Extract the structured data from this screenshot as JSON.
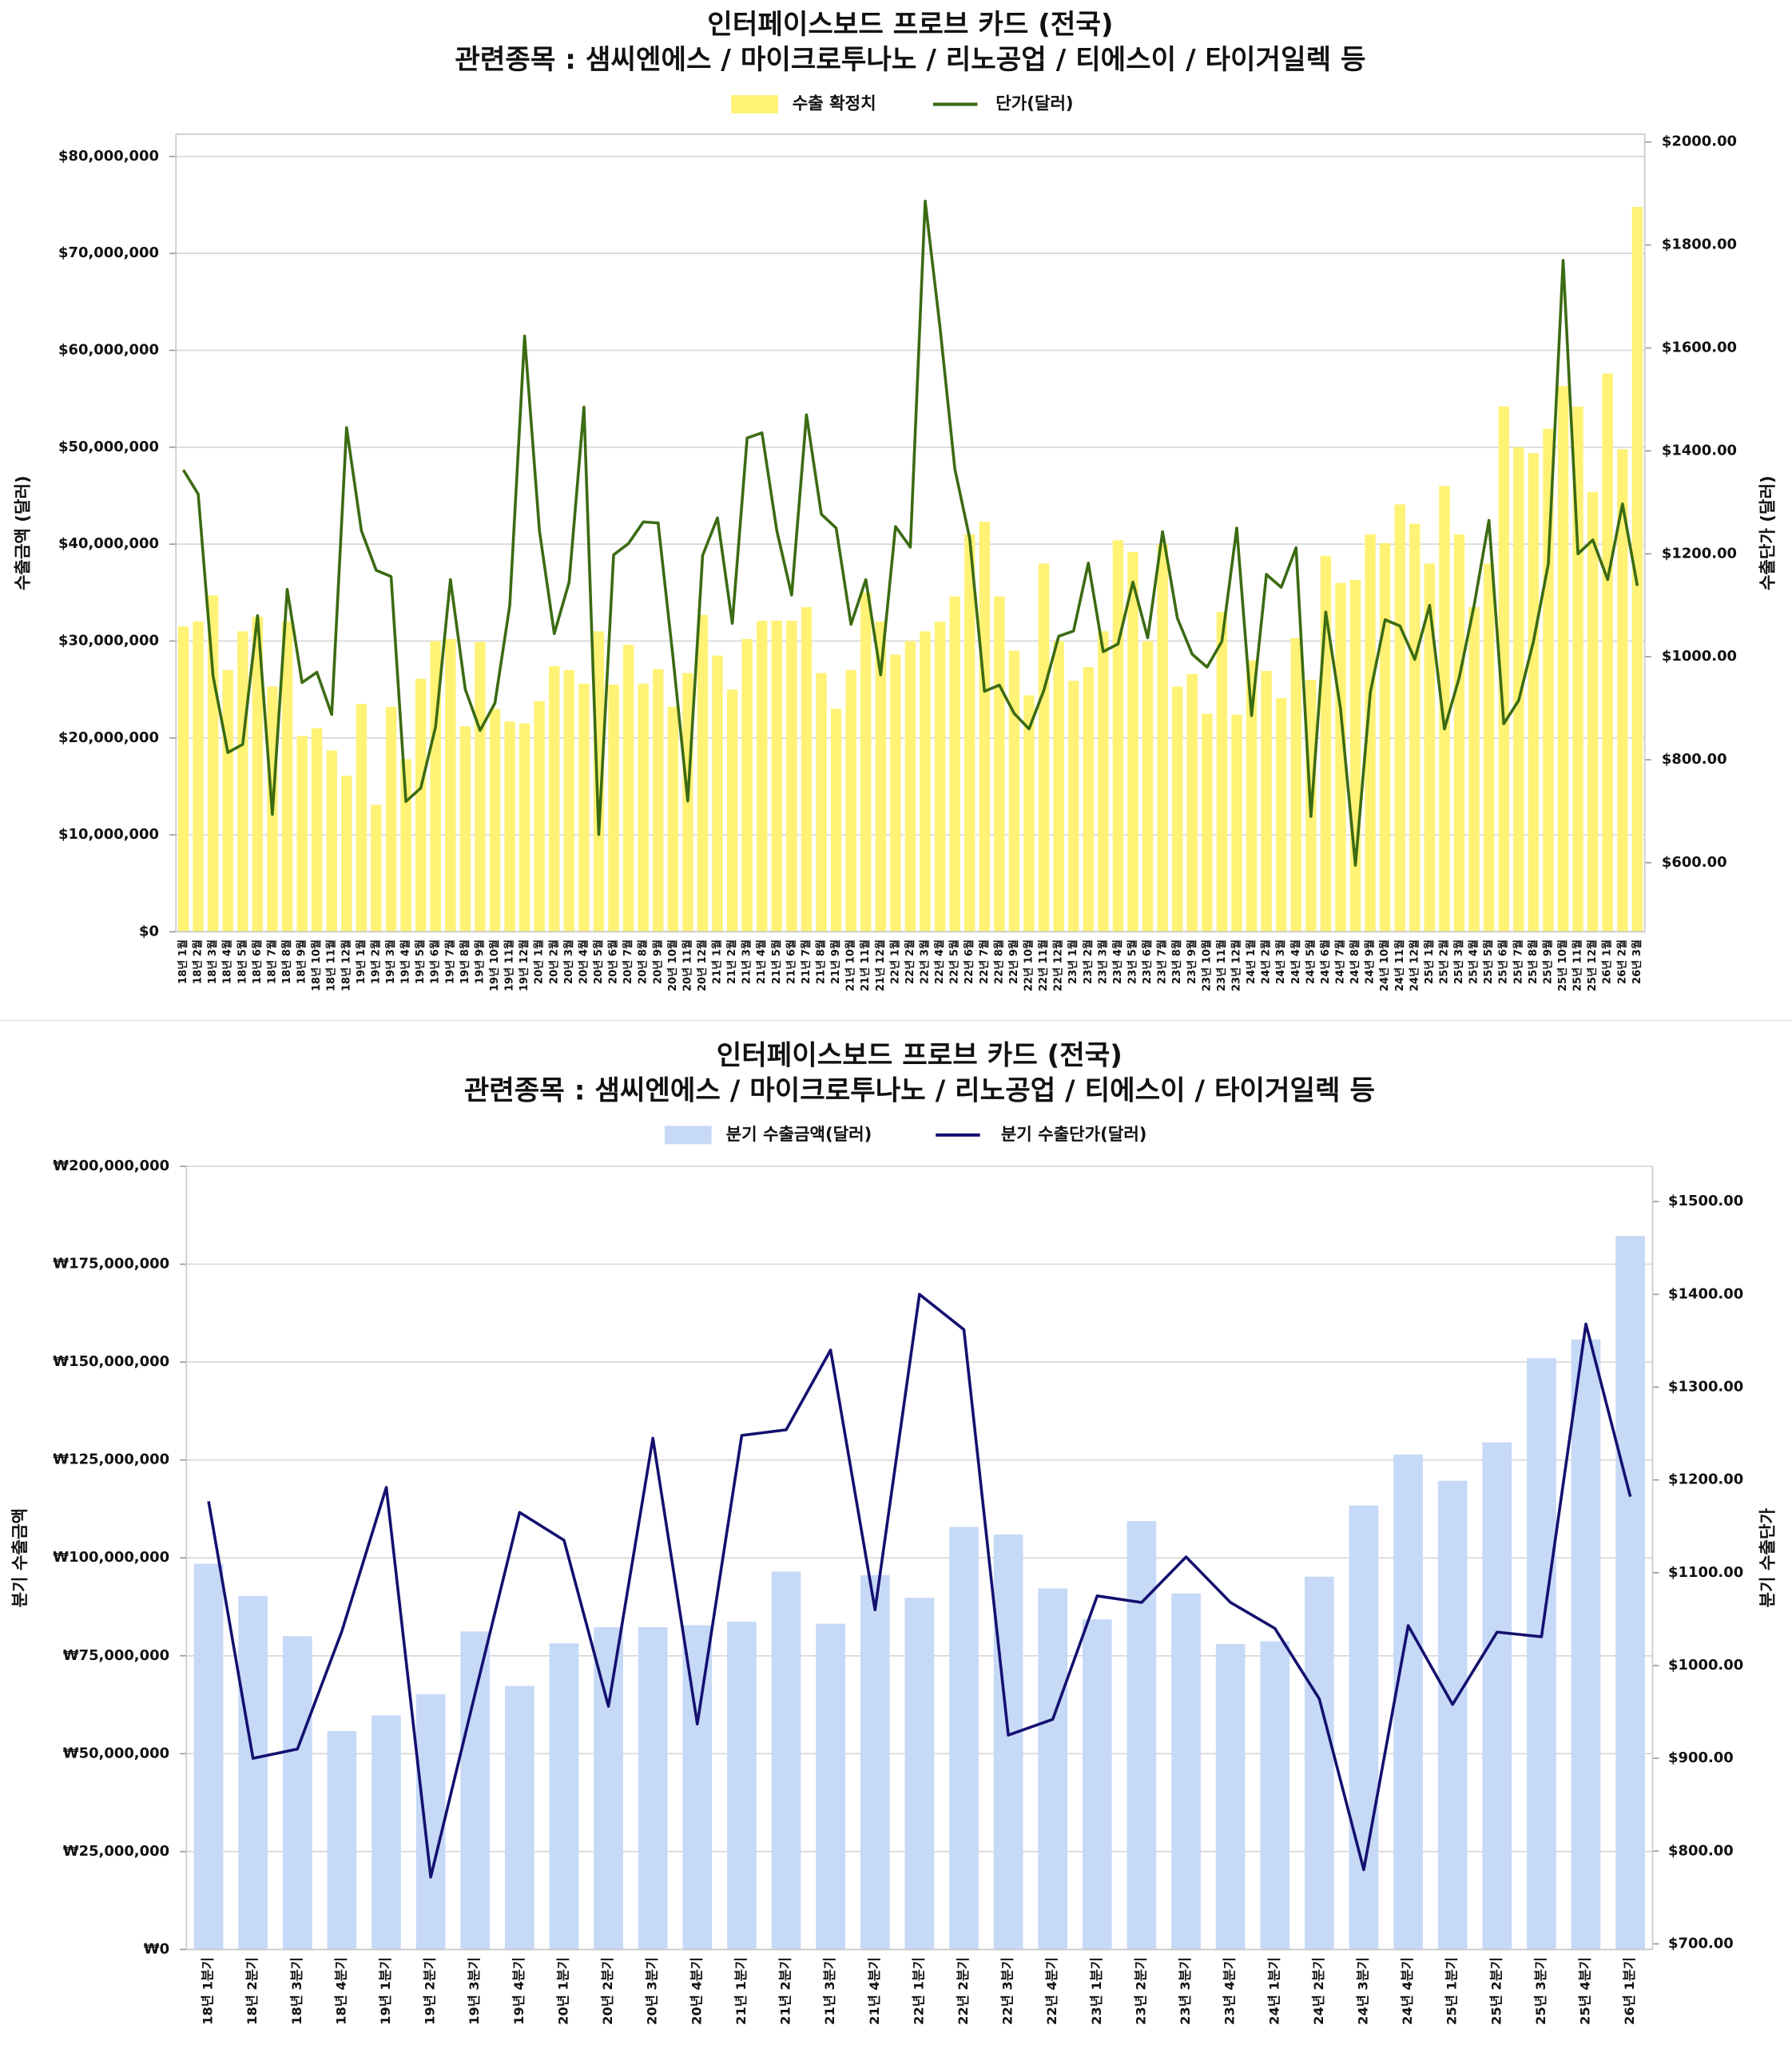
{
  "chart_data": [
    {
      "type": "combo",
      "title": "인터페이스보드 프로브 카드 (전국)",
      "subtitle": "관련종목 : 샘씨엔에스 / 마이크로투나노 / 리노공업 / 티에스이 / 타이거일렉 등",
      "ylabel": "수출금액 (달러)",
      "y2label": "수출단가 (달러)",
      "categories": [
        "18년 1월",
        "18년 2월",
        "18년 3월",
        "18년 4월",
        "18년 5월",
        "18년 6월",
        "18년 7월",
        "18년 8월",
        "18년 9월",
        "18년 10월",
        "18년 11월",
        "18년 12월",
        "19년 1월",
        "19년 2월",
        "19년 3월",
        "19년 4월",
        "19년 5월",
        "19년 6월",
        "19년 7월",
        "19년 8월",
        "19년 9월",
        "19년 10월",
        "19년 11월",
        "19년 12월",
        "20년 1월",
        "20년 2월",
        "20년 3월",
        "20년 4월",
        "20년 5월",
        "20년 6월",
        "20년 7월",
        "20년 8월",
        "20년 9월",
        "20년 10월",
        "20년 11월",
        "20년 12월",
        "21년 1월",
        "21년 2월",
        "21년 3월",
        "21년 4월",
        "21년 5월",
        "21년 6월",
        "21년 7월",
        "21년 8월",
        "21년 9월",
        "21년 10월",
        "21년 11월",
        "21년 12월",
        "22년 1월",
        "22년 2월",
        "22년 3월",
        "22년 4월",
        "22년 5월",
        "22년 6월",
        "22년 7월",
        "22년 8월",
        "22년 9월",
        "22년 10월",
        "22년 11월",
        "22년 12월",
        "23년 1월",
        "23년 2월",
        "23년 3월",
        "23년 4월",
        "23년 5월",
        "23년 6월",
        "23년 7월",
        "23년 8월",
        "23년 9월",
        "23년 10월",
        "23년 11월",
        "23년 12월",
        "24년 1월",
        "24년 2월",
        "24년 3월",
        "24년 4월",
        "24년 5월",
        "24년 6월",
        "24년 7월",
        "24년 8월",
        "24년 9월",
        "24년 10월",
        "24년 11월",
        "24년 12월",
        "25년 1월",
        "25년 2월",
        "25년 3월",
        "25년 4월",
        "25년 5월",
        "25년 6월",
        "25년 7월",
        "25년 8월",
        "25년 9월",
        "25년 10월",
        "25년 11월",
        "25년 12월",
        "26년 1월",
        "26년 2월",
        "26년 3월"
      ],
      "series": [
        {
          "name": "수출 확정치",
          "type": "bar",
          "color": "#fff275",
          "values": [
            31500000,
            32000000,
            34700000,
            27000000,
            31000000,
            32500000,
            25300000,
            32000000,
            20200000,
            21000000,
            18700000,
            16100000,
            23500000,
            13100000,
            23200000,
            17800000,
            26100000,
            30000000,
            30200000,
            21200000,
            29900000,
            23000000,
            21700000,
            21500000,
            23800000,
            27400000,
            27000000,
            25600000,
            31000000,
            25500000,
            29600000,
            25600000,
            27100000,
            23200000,
            26700000,
            32700000,
            28500000,
            25000000,
            30200000,
            32100000,
            32100000,
            32100000,
            33500000,
            26700000,
            23000000,
            27000000,
            35000000,
            32000000,
            28600000,
            30000000,
            31000000,
            32000000,
            34600000,
            41000000,
            42300000,
            34600000,
            29000000,
            24400000,
            38000000,
            30000000,
            25900000,
            27300000,
            31000000,
            40400000,
            39200000,
            30000000,
            40000000,
            25300000,
            26600000,
            22500000,
            33000000,
            22400000,
            28000000,
            26900000,
            24100000,
            30300000,
            26000000,
            38800000,
            36000000,
            36300000,
            41000000,
            40100000,
            44100000,
            42100000,
            38000000,
            46000000,
            41000000,
            33500000,
            38000000,
            54200000,
            50000000,
            49400000,
            51900000,
            56300000,
            54200000,
            45400000,
            57600000,
            49800000,
            74800000
          ]
        },
        {
          "name": "단가(달러)",
          "type": "line",
          "axis": "y2",
          "color": "#3b6b12",
          "values": [
            1363,
            1316,
            963,
            814,
            830,
            1080,
            694,
            1131,
            950,
            970,
            888,
            1445,
            1245,
            1168,
            1156,
            719,
            745,
            864,
            1150,
            937,
            857,
            910,
            1100,
            1623,
            1245,
            1045,
            1145,
            1485,
            655,
            1198,
            1220,
            1262,
            1260,
            1000,
            720,
            1197,
            1270,
            1065,
            1425,
            1435,
            1245,
            1120,
            1470,
            1277,
            1250,
            1063,
            1150,
            965,
            1253,
            1213,
            1885,
            1640,
            1365,
            1230,
            933,
            945,
            890,
            860,
            935,
            1040,
            1050,
            1182,
            1010,
            1025,
            1145,
            1037,
            1243,
            1075,
            1005,
            980,
            1030,
            1250,
            886,
            1160,
            1135,
            1212,
            690,
            1087,
            898,
            595,
            930,
            1072,
            1060,
            995,
            1100,
            860,
            960,
            1100,
            1265,
            870,
            915,
            1030,
            1180,
            1770,
            1200,
            1227,
            1150,
            1297,
            1138
          ]
        }
      ],
      "ylim": [
        0,
        82300000
      ],
      "yticks": [
        {
          "value": 0,
          "label": "$0"
        },
        {
          "value": 10000000,
          "label": "$10,000,000"
        },
        {
          "value": 20000000,
          "label": "$20,000,000"
        },
        {
          "value": 30000000,
          "label": "$30,000,000"
        },
        {
          "value": 40000000,
          "label": "$40,000,000"
        },
        {
          "value": 50000000,
          "label": "$50,000,000"
        },
        {
          "value": 60000000,
          "label": "$60,000,000"
        },
        {
          "value": 70000000,
          "label": "$70,000,000"
        },
        {
          "value": 80000000,
          "label": "$80,000,000"
        }
      ],
      "y2lim": [
        466,
        2015
      ],
      "y2ticks": [
        {
          "value": 600,
          "label": "$600.00"
        },
        {
          "value": 800,
          "label": "$800.00"
        },
        {
          "value": 1000,
          "label": "$1000.00"
        },
        {
          "value": 1200,
          "label": "$1200.00"
        },
        {
          "value": 1400,
          "label": "$1400.00"
        },
        {
          "value": 1600,
          "label": "$1600.00"
        },
        {
          "value": 1800,
          "label": "$1800.00"
        },
        {
          "value": 2000,
          "label": "$2000.00"
        }
      ],
      "grid": true,
      "legend": "top"
    },
    {
      "type": "combo",
      "title": "인터페이스보드 프로브 카드 (전국)",
      "subtitle": "관련종목 : 샘씨엔에스 / 마이크로투나노 / 리노공업 / 티에스이 / 타이거일렉 등",
      "ylabel": "분기 수출금액",
      "y2label": "분기 수출단가",
      "categories": [
        "18년 1분기",
        "18년 2분기",
        "18년 3분기",
        "18년 4분기",
        "19년 1분기",
        "19년 2분기",
        "19년 3분기",
        "19년 4분기",
        "20년 1분기",
        "20년 2분기",
        "20년 3분기",
        "20년 4분기",
        "21년 1분기",
        "21년 2분기",
        "21년 3분기",
        "21년 4분기",
        "22년 1분기",
        "22년 2분기",
        "22년 3분기",
        "22년 4분기",
        "23년 1분기",
        "23년 2분기",
        "23년 3분기",
        "23년 4분기",
        "24년 1분기",
        "24년 2분기",
        "24년 3분기",
        "24년 4분기",
        "25년 1분기",
        "25년 2분기",
        "25년 3분기",
        "25년 4분기",
        "26년 1분기"
      ],
      "series": [
        {
          "name": "분기 수출금액(달러)",
          "type": "bar",
          "color": "#c6d9f7",
          "values": [
            98500000,
            90300000,
            80000000,
            55800000,
            59800000,
            65200000,
            81200000,
            67300000,
            78200000,
            82300000,
            82300000,
            82800000,
            83700000,
            96500000,
            83200000,
            95600000,
            89800000,
            107900000,
            106000000,
            92200000,
            84300000,
            109400000,
            90900000,
            78000000,
            78700000,
            95200000,
            113400000,
            126400000,
            119700000,
            129500000,
            151000000,
            155800000,
            182200000
          ]
        },
        {
          "name": "분기 수출단가(달러)",
          "type": "line",
          "axis": "y2",
          "color": "#14106f",
          "values": [
            1177,
            900,
            910,
            1037,
            1192,
            772,
            970,
            1165,
            1135,
            956,
            1245,
            937,
            1248,
            1254,
            1340,
            1060,
            1400,
            1362,
            925,
            942,
            1075,
            1068,
            1117,
            1068,
            1040,
            964,
            780,
            1043,
            958,
            1036,
            1031,
            1368,
            1182
          ]
        }
      ],
      "ylim": [
        0,
        200000000
      ],
      "yticks": [
        {
          "value": 0,
          "label": "₩0"
        },
        {
          "value": 25000000,
          "label": "₩25,000,000"
        },
        {
          "value": 50000000,
          "label": "₩50,000,000"
        },
        {
          "value": 75000000,
          "label": "₩75,000,000"
        },
        {
          "value": 100000000,
          "label": "₩100,000,000"
        },
        {
          "value": 125000000,
          "label": "₩125,000,000"
        },
        {
          "value": 150000000,
          "label": "₩150,000,000"
        },
        {
          "value": 175000000,
          "label": "₩175,000,000"
        },
        {
          "value": 200000000,
          "label": "₩200,000,000"
        }
      ],
      "y2lim": [
        694,
        1538
      ],
      "y2ticks": [
        {
          "value": 700,
          "label": "$700.00"
        },
        {
          "value": 800,
          "label": "$800.00"
        },
        {
          "value": 900,
          "label": "$900.00"
        },
        {
          "value": 1000,
          "label": "$1000.00"
        },
        {
          "value": 1100,
          "label": "$1100.00"
        },
        {
          "value": 1200,
          "label": "$1200.00"
        },
        {
          "value": 1300,
          "label": "$1300.00"
        },
        {
          "value": 1400,
          "label": "$1400.00"
        },
        {
          "value": 1500,
          "label": "$1500.00"
        }
      ],
      "grid": true,
      "legend": "top"
    }
  ]
}
